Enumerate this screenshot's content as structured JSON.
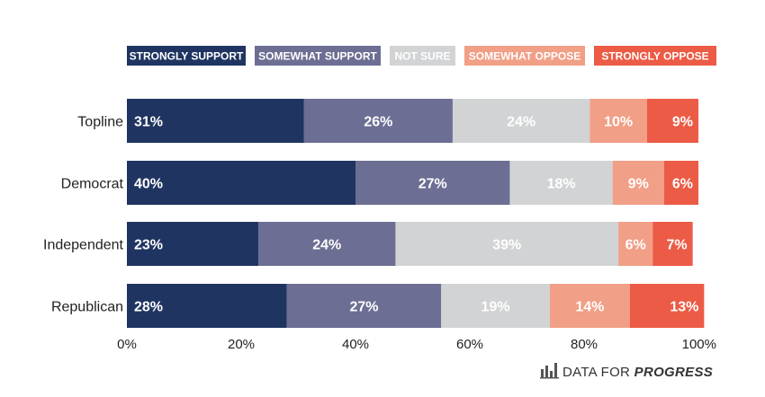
{
  "chart_data": {
    "type": "bar",
    "orientation": "horizontal",
    "stacked": true,
    "categories": [
      "Topline",
      "Democrat",
      "Independent",
      "Republican"
    ],
    "series": [
      {
        "name": "STRONGLY SUPPORT",
        "color": "#1f3461",
        "values": [
          31,
          40,
          23,
          28
        ]
      },
      {
        "name": "SOMEWHAT SUPPORT",
        "color": "#6c6e93",
        "values": [
          26,
          27,
          24,
          27
        ]
      },
      {
        "name": "NOT SURE",
        "color": "#d1d3d4",
        "values": [
          24,
          18,
          39,
          19
        ]
      },
      {
        "name": "SOMEWHAT OPPOSE",
        "color": "#f19f86",
        "values": [
          10,
          9,
          6,
          14
        ]
      },
      {
        "name": "STRONGLY OPPOSE",
        "color": "#ec5b45",
        "values": [
          9,
          6,
          7,
          13
        ]
      }
    ],
    "xticks": [
      "0%",
      "20%",
      "40%",
      "60%",
      "80%",
      "100%"
    ],
    "xlim": [
      0,
      100
    ],
    "unit": "%",
    "grid": false,
    "legend_position": "top"
  },
  "branding": {
    "text_regular": "DATA FOR",
    "text_bold": "PROGRESS",
    "icon": "bar-chart-icon"
  }
}
